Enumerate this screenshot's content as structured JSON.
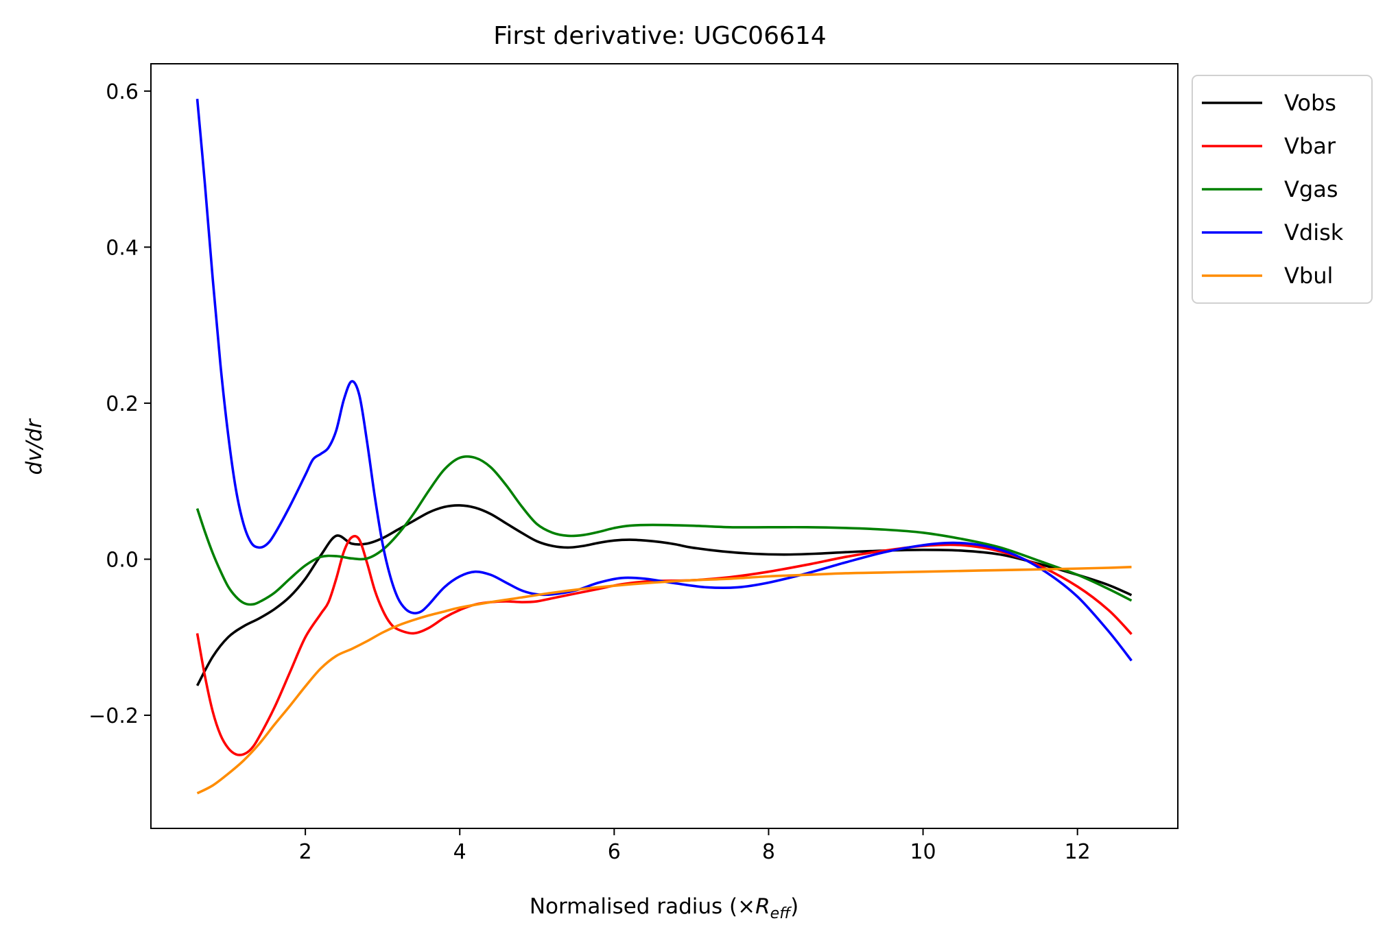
{
  "chart_data": {
    "type": "line",
    "title": "First derivative: UGC06614",
    "xlabel": "Normalised radius (×",
    "xlabel_math": "R",
    "xlabel_sub": "eff",
    "xlabel_close": ")",
    "ylabel_italic": "dv/dr",
    "xlim": [
      0.0,
      13.3
    ],
    "ylim": [
      -0.345,
      0.635
    ],
    "x_ticks": [
      2,
      4,
      6,
      8,
      10,
      12
    ],
    "x_tick_labels": [
      "2",
      "4",
      "6",
      "8",
      "10",
      "12"
    ],
    "y_ticks": [
      -0.2,
      0.0,
      0.2,
      0.4,
      0.6
    ],
    "y_tick_labels": [
      "−0.2",
      "0.0",
      "0.2",
      "0.4",
      "0.6"
    ],
    "grid": false,
    "legend_position": "outside upper right",
    "series": [
      {
        "name": "Vobs",
        "color": "#000000",
        "points": [
          [
            0.6,
            -0.162
          ],
          [
            0.8,
            -0.125
          ],
          [
            1.0,
            -0.1
          ],
          [
            1.2,
            -0.086
          ],
          [
            1.4,
            -0.076
          ],
          [
            1.6,
            -0.064
          ],
          [
            1.8,
            -0.048
          ],
          [
            2.0,
            -0.025
          ],
          [
            2.2,
            0.005
          ],
          [
            2.4,
            0.03
          ],
          [
            2.6,
            0.02
          ],
          [
            2.8,
            0.02
          ],
          [
            3.0,
            0.027
          ],
          [
            3.2,
            0.038
          ],
          [
            3.4,
            0.049
          ],
          [
            3.6,
            0.06
          ],
          [
            3.8,
            0.067
          ],
          [
            4.0,
            0.069
          ],
          [
            4.2,
            0.066
          ],
          [
            4.4,
            0.058
          ],
          [
            4.6,
            0.046
          ],
          [
            4.8,
            0.034
          ],
          [
            5.0,
            0.023
          ],
          [
            5.2,
            0.017
          ],
          [
            5.4,
            0.015
          ],
          [
            5.6,
            0.017
          ],
          [
            5.8,
            0.021
          ],
          [
            6.0,
            0.024
          ],
          [
            6.2,
            0.025
          ],
          [
            6.4,
            0.024
          ],
          [
            6.6,
            0.022
          ],
          [
            6.8,
            0.019
          ],
          [
            7.0,
            0.015
          ],
          [
            7.4,
            0.01
          ],
          [
            7.8,
            0.007
          ],
          [
            8.2,
            0.006
          ],
          [
            8.6,
            0.007
          ],
          [
            9.0,
            0.009
          ],
          [
            9.5,
            0.011
          ],
          [
            10.0,
            0.012
          ],
          [
            10.5,
            0.011
          ],
          [
            11.0,
            0.006
          ],
          [
            11.5,
            -0.006
          ],
          [
            12.0,
            -0.02
          ],
          [
            12.4,
            -0.033
          ],
          [
            12.7,
            -0.046
          ]
        ]
      },
      {
        "name": "Vbar",
        "color": "#ff0000",
        "points": [
          [
            0.6,
            -0.095
          ],
          [
            0.7,
            -0.15
          ],
          [
            0.8,
            -0.195
          ],
          [
            0.9,
            -0.225
          ],
          [
            1.0,
            -0.242
          ],
          [
            1.1,
            -0.25
          ],
          [
            1.2,
            -0.25
          ],
          [
            1.3,
            -0.243
          ],
          [
            1.4,
            -0.228
          ],
          [
            1.6,
            -0.19
          ],
          [
            1.8,
            -0.145
          ],
          [
            2.0,
            -0.1
          ],
          [
            2.2,
            -0.07
          ],
          [
            2.3,
            -0.055
          ],
          [
            2.4,
            -0.025
          ],
          [
            2.5,
            0.01
          ],
          [
            2.6,
            0.028
          ],
          [
            2.7,
            0.025
          ],
          [
            2.8,
            -0.005
          ],
          [
            2.9,
            -0.04
          ],
          [
            3.0,
            -0.065
          ],
          [
            3.1,
            -0.082
          ],
          [
            3.2,
            -0.09
          ],
          [
            3.4,
            -0.095
          ],
          [
            3.6,
            -0.088
          ],
          [
            3.8,
            -0.075
          ],
          [
            4.0,
            -0.065
          ],
          [
            4.2,
            -0.058
          ],
          [
            4.4,
            -0.055
          ],
          [
            4.6,
            -0.054
          ],
          [
            4.8,
            -0.055
          ],
          [
            5.0,
            -0.054
          ],
          [
            5.2,
            -0.05
          ],
          [
            5.5,
            -0.044
          ],
          [
            5.8,
            -0.038
          ],
          [
            6.1,
            -0.032
          ],
          [
            6.5,
            -0.028
          ],
          [
            7.0,
            -0.027
          ],
          [
            7.5,
            -0.023
          ],
          [
            8.0,
            -0.016
          ],
          [
            8.5,
            -0.007
          ],
          [
            9.0,
            0.003
          ],
          [
            9.5,
            0.011
          ],
          [
            10.0,
            0.017
          ],
          [
            10.5,
            0.018
          ],
          [
            11.0,
            0.01
          ],
          [
            11.5,
            -0.008
          ],
          [
            12.0,
            -0.035
          ],
          [
            12.4,
            -0.065
          ],
          [
            12.7,
            -0.096
          ]
        ]
      },
      {
        "name": "Vgas",
        "color": "#008000",
        "points": [
          [
            0.6,
            0.065
          ],
          [
            0.7,
            0.035
          ],
          [
            0.8,
            0.008
          ],
          [
            0.9,
            -0.015
          ],
          [
            1.0,
            -0.035
          ],
          [
            1.1,
            -0.048
          ],
          [
            1.2,
            -0.056
          ],
          [
            1.3,
            -0.058
          ],
          [
            1.4,
            -0.055
          ],
          [
            1.6,
            -0.043
          ],
          [
            1.8,
            -0.025
          ],
          [
            2.0,
            -0.008
          ],
          [
            2.2,
            0.003
          ],
          [
            2.4,
            0.004
          ],
          [
            2.6,
            0.001
          ],
          [
            2.8,
            0.001
          ],
          [
            3.0,
            0.012
          ],
          [
            3.2,
            0.032
          ],
          [
            3.4,
            0.058
          ],
          [
            3.6,
            0.088
          ],
          [
            3.8,
            0.115
          ],
          [
            4.0,
            0.13
          ],
          [
            4.2,
            0.13
          ],
          [
            4.4,
            0.118
          ],
          [
            4.6,
            0.095
          ],
          [
            4.8,
            0.068
          ],
          [
            5.0,
            0.045
          ],
          [
            5.2,
            0.034
          ],
          [
            5.4,
            0.03
          ],
          [
            5.6,
            0.031
          ],
          [
            5.8,
            0.035
          ],
          [
            6.0,
            0.04
          ],
          [
            6.2,
            0.043
          ],
          [
            6.5,
            0.044
          ],
          [
            7.0,
            0.043
          ],
          [
            7.5,
            0.041
          ],
          [
            8.0,
            0.041
          ],
          [
            8.5,
            0.041
          ],
          [
            9.0,
            0.04
          ],
          [
            9.5,
            0.038
          ],
          [
            10.0,
            0.034
          ],
          [
            10.5,
            0.026
          ],
          [
            11.0,
            0.015
          ],
          [
            11.5,
            -0.002
          ],
          [
            12.0,
            -0.02
          ],
          [
            12.4,
            -0.038
          ],
          [
            12.7,
            -0.053
          ]
        ]
      },
      {
        "name": "Vdisk",
        "color": "#0000ff",
        "points": [
          [
            0.6,
            0.59
          ],
          [
            0.7,
            0.48
          ],
          [
            0.8,
            0.36
          ],
          [
            0.9,
            0.25
          ],
          [
            1.0,
            0.16
          ],
          [
            1.1,
            0.09
          ],
          [
            1.2,
            0.045
          ],
          [
            1.3,
            0.021
          ],
          [
            1.4,
            0.015
          ],
          [
            1.5,
            0.019
          ],
          [
            1.6,
            0.032
          ],
          [
            1.8,
            0.068
          ],
          [
            2.0,
            0.108
          ],
          [
            2.1,
            0.128
          ],
          [
            2.2,
            0.135
          ],
          [
            2.3,
            0.143
          ],
          [
            2.4,
            0.165
          ],
          [
            2.5,
            0.205
          ],
          [
            2.6,
            0.228
          ],
          [
            2.7,
            0.21
          ],
          [
            2.8,
            0.15
          ],
          [
            2.9,
            0.08
          ],
          [
            3.0,
            0.02
          ],
          [
            3.1,
            -0.022
          ],
          [
            3.2,
            -0.05
          ],
          [
            3.3,
            -0.064
          ],
          [
            3.4,
            -0.069
          ],
          [
            3.5,
            -0.067
          ],
          [
            3.6,
            -0.058
          ],
          [
            3.8,
            -0.036
          ],
          [
            4.0,
            -0.022
          ],
          [
            4.2,
            -0.016
          ],
          [
            4.4,
            -0.02
          ],
          [
            4.6,
            -0.03
          ],
          [
            4.8,
            -0.04
          ],
          [
            5.0,
            -0.045
          ],
          [
            5.2,
            -0.045
          ],
          [
            5.5,
            -0.04
          ],
          [
            5.8,
            -0.03
          ],
          [
            6.1,
            -0.024
          ],
          [
            6.4,
            -0.025
          ],
          [
            6.8,
            -0.031
          ],
          [
            7.2,
            -0.036
          ],
          [
            7.6,
            -0.036
          ],
          [
            8.0,
            -0.03
          ],
          [
            8.5,
            -0.018
          ],
          [
            9.0,
            -0.004
          ],
          [
            9.5,
            0.009
          ],
          [
            10.0,
            0.018
          ],
          [
            10.4,
            0.021
          ],
          [
            10.8,
            0.017
          ],
          [
            11.2,
            0.005
          ],
          [
            11.6,
            -0.017
          ],
          [
            12.0,
            -0.048
          ],
          [
            12.4,
            -0.092
          ],
          [
            12.7,
            -0.13
          ]
        ]
      },
      {
        "name": "Vbul",
        "color": "#ff8c00",
        "points": [
          [
            0.6,
            -0.3
          ],
          [
            0.8,
            -0.29
          ],
          [
            1.0,
            -0.275
          ],
          [
            1.2,
            -0.258
          ],
          [
            1.4,
            -0.237
          ],
          [
            1.6,
            -0.212
          ],
          [
            1.8,
            -0.188
          ],
          [
            2.0,
            -0.163
          ],
          [
            2.2,
            -0.14
          ],
          [
            2.4,
            -0.124
          ],
          [
            2.6,
            -0.115
          ],
          [
            2.8,
            -0.105
          ],
          [
            3.0,
            -0.094
          ],
          [
            3.2,
            -0.085
          ],
          [
            3.4,
            -0.078
          ],
          [
            3.6,
            -0.072
          ],
          [
            3.8,
            -0.067
          ],
          [
            4.0,
            -0.062
          ],
          [
            4.4,
            -0.055
          ],
          [
            4.8,
            -0.049
          ],
          [
            5.2,
            -0.043
          ],
          [
            5.6,
            -0.038
          ],
          [
            6.0,
            -0.034
          ],
          [
            6.5,
            -0.03
          ],
          [
            7.0,
            -0.027
          ],
          [
            7.5,
            -0.025
          ],
          [
            8.0,
            -0.022
          ],
          [
            8.5,
            -0.02
          ],
          [
            9.0,
            -0.018
          ],
          [
            9.5,
            -0.017
          ],
          [
            10.0,
            -0.016
          ],
          [
            10.5,
            -0.015
          ],
          [
            11.0,
            -0.014
          ],
          [
            11.5,
            -0.013
          ],
          [
            12.0,
            -0.012
          ],
          [
            12.4,
            -0.011
          ],
          [
            12.7,
            -0.01
          ]
        ]
      }
    ]
  }
}
